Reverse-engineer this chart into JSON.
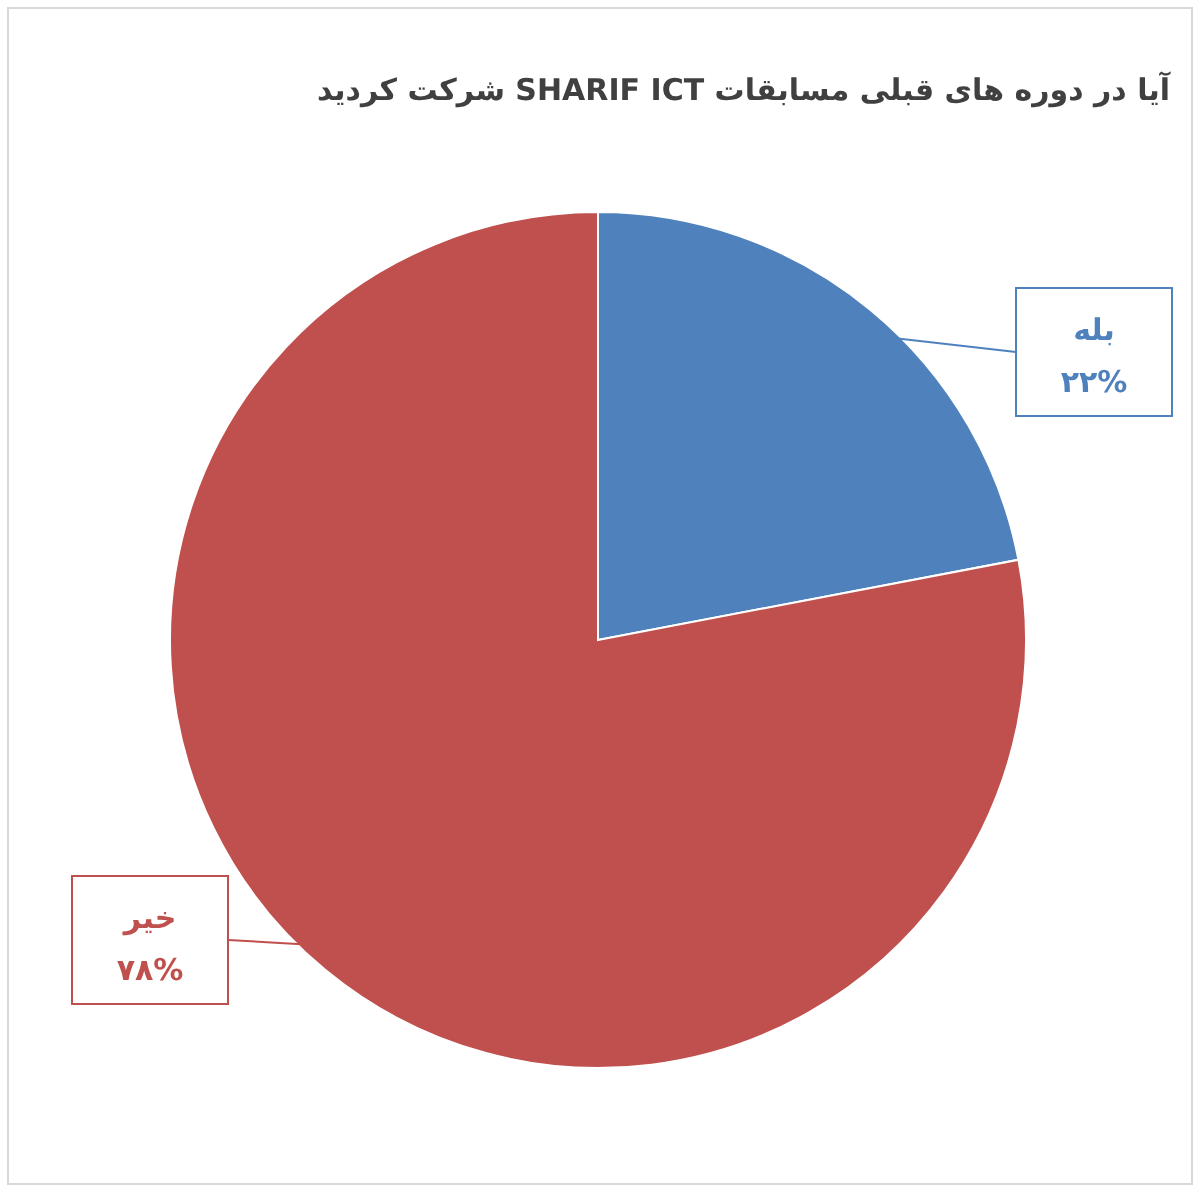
{
  "chart_data": {
    "type": "pie",
    "title": "آیا در دوره های قبلی مسابقات SHARIF ICT شرکت کردید",
    "categories": [
      "بله",
      "خیر"
    ],
    "values": [
      22,
      78
    ],
    "colors": [
      "#4f81bd",
      "#c0504d"
    ],
    "value_labels": [
      "۲۲%",
      "۷۸%"
    ]
  }
}
